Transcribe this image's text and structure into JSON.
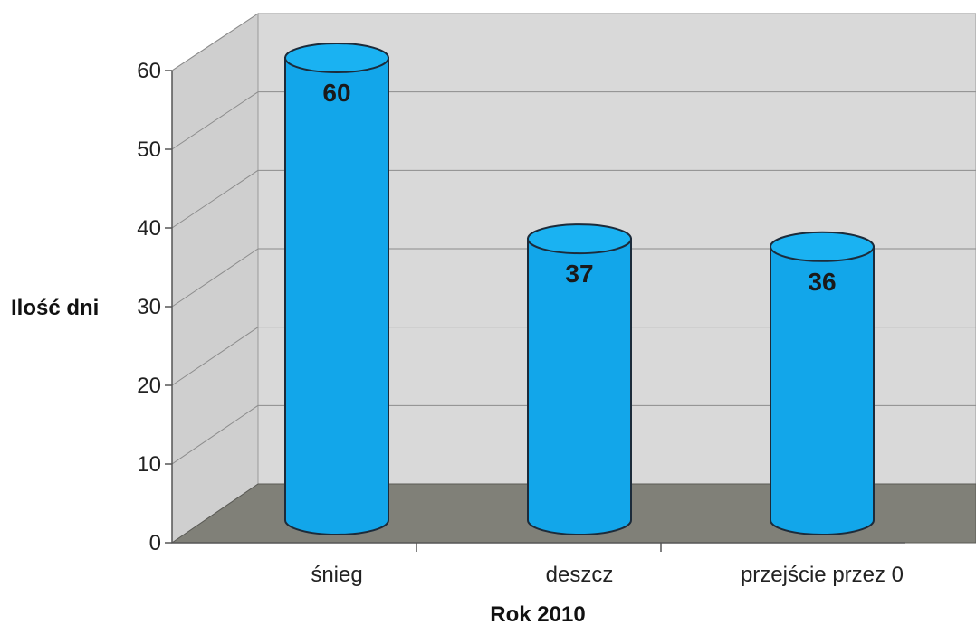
{
  "chart_data": {
    "type": "bar",
    "style": "3d-cylinder",
    "categories": [
      "śnieg",
      "deszcz",
      "przejście przez 0"
    ],
    "values": [
      60,
      37,
      36
    ],
    "data_labels": [
      "60",
      "37",
      "36"
    ],
    "xlabel": "Rok 2010",
    "ylabel": "Ilość dni",
    "ylim": [
      0,
      60
    ],
    "yticks": [
      0,
      10,
      20,
      30,
      40,
      50,
      60
    ],
    "grid": true,
    "legend": "none",
    "colors": {
      "bar": "#12a6ea",
      "bar_stroke": "#1c2b3a",
      "wall": "#d9d9d9",
      "floor": "#808078",
      "gridline": "#8c8c8c"
    }
  }
}
